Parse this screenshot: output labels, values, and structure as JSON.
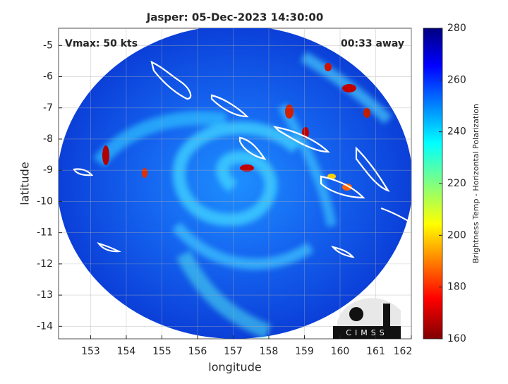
{
  "chart_data": {
    "type": "image",
    "title": "Jasper: 05-Dec-2023 14:30:00",
    "annotations": [
      "Vmax: 50 kts",
      "00:33 away"
    ],
    "xlabel": "longitude",
    "ylabel": "latitude",
    "xlim": [
      152.1,
      162.0
    ],
    "ylim": [
      -14.4,
      -4.45
    ],
    "xticks": [
      153,
      154,
      155,
      156,
      157,
      158,
      159,
      160,
      161,
      162
    ],
    "yticks": [
      -5,
      -6,
      -7,
      -8,
      -9,
      -10,
      -11,
      -12,
      -13,
      -14
    ],
    "grid": true,
    "colorbar": {
      "label": "Brightness Temp - Horizontal Polarization",
      "lim": [
        160,
        280
      ],
      "ticks": [
        160,
        180,
        200,
        220,
        240,
        260,
        280
      ]
    },
    "logo_text": "CIMSS"
  }
}
